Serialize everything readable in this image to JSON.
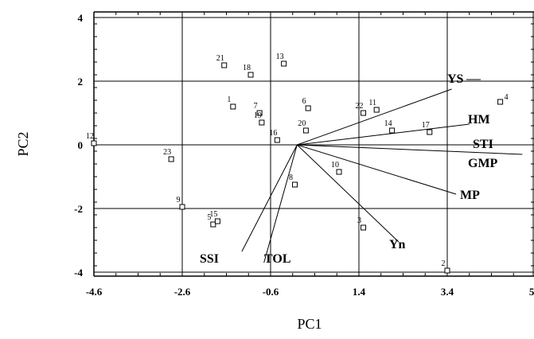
{
  "chart_data": {
    "type": "scatter",
    "title": "",
    "xlabel": "PC1",
    "ylabel": "PC2",
    "xlim": [
      -4.6,
      5.4
    ],
    "ylim": [
      -4.2,
      4.2
    ],
    "x_ticks": [
      -4.6,
      -2.6,
      -0.6,
      1.4,
      3.4,
      5.4
    ],
    "x_tick_labels": [
      "-4.6",
      "-2.6",
      "-0.6",
      "1.4",
      "3.4",
      "5.4"
    ],
    "y_ticks": [
      -4,
      -2,
      0,
      2,
      4
    ],
    "y_tick_labels": [
      "-4",
      "-2",
      "0",
      "2",
      "4"
    ],
    "grid": true,
    "points": [
      {
        "label": "1",
        "x": -1.45,
        "y": 1.2
      },
      {
        "label": "2",
        "x": 3.4,
        "y": -3.95
      },
      {
        "label": "3",
        "x": 1.5,
        "y": -2.6
      },
      {
        "label": "4",
        "x": 4.6,
        "y": 1.35
      },
      {
        "label": "5",
        "x": -1.9,
        "y": -2.5
      },
      {
        "label": "7",
        "x": -0.85,
        "y": 1.0
      },
      {
        "label": "6",
        "x": 0.25,
        "y": 1.15
      },
      {
        "label": "8",
        "x": -0.05,
        "y": -1.25
      },
      {
        "label": "9",
        "x": -2.6,
        "y": -1.95
      },
      {
        "label": "10",
        "x": 0.95,
        "y": -0.85
      },
      {
        "label": "11",
        "x": 1.8,
        "y": 1.1
      },
      {
        "label": "12",
        "x": -4.6,
        "y": 0.05
      },
      {
        "label": "13",
        "x": -0.3,
        "y": 2.55
      },
      {
        "label": "14",
        "x": 2.15,
        "y": 0.45
      },
      {
        "label": "15",
        "x": -1.8,
        "y": -2.4
      },
      {
        "label": "16",
        "x": -0.45,
        "y": 0.15
      },
      {
        "label": "17",
        "x": 3.0,
        "y": 0.4
      },
      {
        "label": "18",
        "x": -1.05,
        "y": 2.2
      },
      {
        "label": "19",
        "x": -0.8,
        "y": 0.7
      },
      {
        "label": "20",
        "x": 0.2,
        "y": 0.45
      },
      {
        "label": "21",
        "x": -1.65,
        "y": 2.5
      },
      {
        "label": "22",
        "x": 1.5,
        "y": 1.0
      },
      {
        "label": "23",
        "x": -2.85,
        "y": -0.45
      }
    ],
    "vectors": [
      {
        "label": "YS",
        "x": 3.5,
        "y": 1.75
      },
      {
        "label": "HM",
        "x": 3.9,
        "y": 0.65
      },
      {
        "label": "STI",
        "x": 5.1,
        "y": 0.0
      },
      {
        "label": "GMP",
        "x": 5.1,
        "y": -0.3
      },
      {
        "label": "MP",
        "x": 3.6,
        "y": -1.55
      },
      {
        "label": "Yn",
        "x": 2.3,
        "y": -3.05
      },
      {
        "label": "SSI",
        "x": -1.25,
        "y": -3.35
      },
      {
        "label": "TOL",
        "x": -0.75,
        "y": -3.7
      }
    ]
  }
}
